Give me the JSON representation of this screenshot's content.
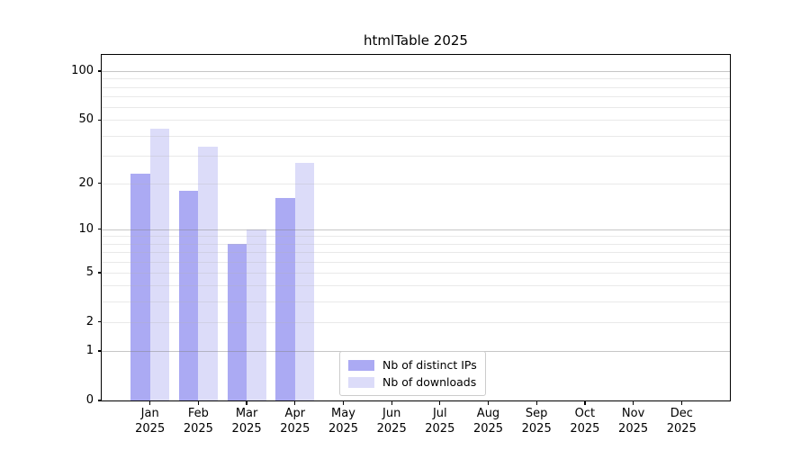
{
  "chart_data": {
    "type": "bar",
    "title": "htmlTable 2025",
    "year": "2025",
    "categories": [
      "Jan",
      "Feb",
      "Mar",
      "Apr",
      "May",
      "Jun",
      "Jul",
      "Aug",
      "Sep",
      "Oct",
      "Nov",
      "Dec"
    ],
    "series": [
      {
        "name": "Nb of distinct IPs",
        "color": "#abaaf3",
        "values": [
          23,
          18,
          8,
          16,
          0,
          0,
          0,
          0,
          0,
          0,
          0,
          0
        ]
      },
      {
        "name": "Nb of downloads",
        "color": "#dcdcf9",
        "values": [
          44,
          34,
          10,
          27,
          0,
          0,
          0,
          0,
          0,
          0,
          0,
          0
        ]
      }
    ],
    "yscale": "log10(value+1)",
    "yticks": [
      100,
      50,
      20,
      10,
      5,
      2,
      1,
      0
    ],
    "ylim": [
      0,
      126
    ],
    "grid": "horizontal",
    "legend_position": "bottom-center"
  }
}
